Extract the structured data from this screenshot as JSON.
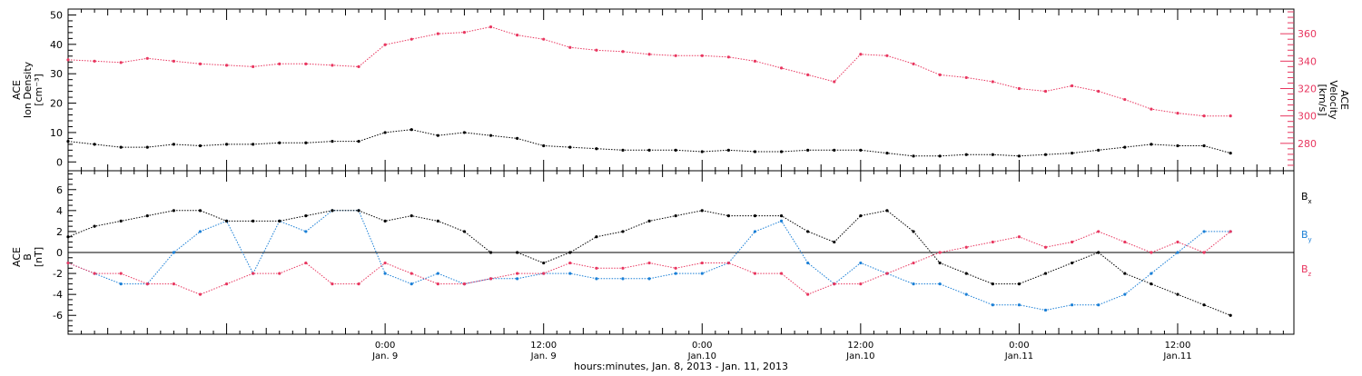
{
  "colors": {
    "frame": "#000000",
    "density": "#000000",
    "velocity": "#e8365f",
    "bx": "#000000",
    "by": "#1a7fd6",
    "bz": "#e8365f"
  },
  "x_axis": {
    "title": "hours:minutes, Jan.  8, 2013 - Jan. 11, 2013",
    "range_hours": [
      0,
      92.8
    ],
    "ticks": [
      {
        "hour": 24,
        "time": "0:00",
        "day": "Jan. 9"
      },
      {
        "hour": 36,
        "time": "12:00",
        "day": "Jan. 9"
      },
      {
        "hour": 48,
        "time": "0:00",
        "day": "Jan.10"
      },
      {
        "hour": 60,
        "time": "12:00",
        "day": "Jan.10"
      },
      {
        "hour": 72,
        "time": "0:00",
        "day": "Jan.11"
      },
      {
        "hour": 84,
        "time": "12:00",
        "day": "Jan.11"
      }
    ]
  },
  "chart_data": [
    {
      "type": "scatter",
      "panel": "top",
      "left_axis_label": [
        "ACE",
        "Ion Density",
        "[cm⁻³]"
      ],
      "right_axis_label": [
        "ACE",
        "Velocity",
        "[km/s]"
      ],
      "left_ylim": [
        -3,
        52
      ],
      "right_ylim": [
        260,
        378
      ],
      "left_ticks": [
        "0",
        "10",
        "20",
        "30",
        "40",
        "50"
      ],
      "right_ticks": [
        "280",
        "300",
        "320",
        "340",
        "360"
      ],
      "series": [
        {
          "axis": "left",
          "x": [
            0,
            2,
            4,
            6,
            8,
            10,
            12,
            14,
            16,
            18,
            20,
            22,
            24,
            26,
            28,
            30,
            32,
            34,
            36,
            38,
            40,
            42,
            44,
            46,
            48,
            50,
            52,
            54,
            56,
            58,
            60,
            62,
            64,
            66,
            68,
            70,
            72,
            74,
            76,
            78,
            80,
            82,
            84,
            86,
            88
          ],
          "y": [
            7,
            6,
            5,
            5,
            6,
            5.5,
            6,
            6,
            6.5,
            6.5,
            7,
            7,
            10,
            11,
            9,
            10,
            9,
            8,
            5.5,
            5,
            4.5,
            4,
            4,
            4,
            3.5,
            4,
            3.5,
            3.5,
            4,
            4,
            4,
            3,
            2,
            2,
            2.5,
            2.5,
            2,
            2.5,
            3,
            4,
            5,
            6,
            5.5,
            5.5,
            3
          ]
        },
        {
          "axis": "right",
          "x": [
            0,
            2,
            4,
            6,
            8,
            10,
            12,
            14,
            16,
            18,
            20,
            22,
            24,
            26,
            28,
            30,
            32,
            34,
            36,
            38,
            40,
            42,
            44,
            46,
            48,
            50,
            52,
            54,
            56,
            58,
            60,
            62,
            64,
            66,
            68,
            70,
            72,
            74,
            76,
            78,
            80,
            82,
            84,
            86,
            88
          ],
          "y": [
            341,
            340,
            339,
            342,
            340,
            338,
            337,
            336,
            338,
            338,
            337,
            336,
            352,
            356,
            360,
            361,
            365,
            359,
            356,
            350,
            348,
            347,
            345,
            344,
            344,
            343,
            340,
            335,
            330,
            325,
            345,
            344,
            338,
            330,
            328,
            325,
            320,
            318,
            322,
            318,
            312,
            305,
            302,
            300,
            300
          ]
        }
      ]
    },
    {
      "type": "scatter",
      "panel": "bottom",
      "left_axis_label": [
        "ACE",
        "B",
        "[nT]"
      ],
      "ylim": [
        -7.8,
        7.8
      ],
      "y_ticks": [
        "-6",
        "-4",
        "-2",
        "0",
        "2",
        "4",
        "6"
      ],
      "series": [
        {
          "name": "Bx",
          "legend": {
            "main": "B",
            "sub": "x"
          },
          "x": [
            0,
            2,
            4,
            6,
            8,
            10,
            12,
            14,
            16,
            18,
            20,
            22,
            24,
            26,
            28,
            30,
            32,
            34,
            36,
            38,
            40,
            42,
            44,
            46,
            48,
            50,
            52,
            54,
            56,
            58,
            60,
            62,
            64,
            66,
            68,
            70,
            72,
            74,
            76,
            78,
            80,
            82,
            84,
            86,
            88
          ],
          "y": [
            1.5,
            2.5,
            3,
            3.5,
            4,
            4,
            3,
            3,
            3,
            3.5,
            4,
            4,
            3,
            3.5,
            3,
            2,
            0,
            0,
            -1,
            0,
            1.5,
            2,
            3,
            3.5,
            4,
            3.5,
            3.5,
            3.5,
            2,
            1,
            3.5,
            4,
            2,
            -1,
            -2,
            -3,
            -3,
            -2,
            -1,
            0,
            -2,
            -3,
            -4,
            -5,
            -6
          ]
        },
        {
          "name": "By",
          "legend": {
            "main": "B",
            "sub": "y"
          },
          "x": [
            0,
            2,
            4,
            6,
            8,
            10,
            12,
            14,
            16,
            18,
            20,
            22,
            24,
            26,
            28,
            30,
            32,
            34,
            36,
            38,
            40,
            42,
            44,
            46,
            48,
            50,
            52,
            54,
            56,
            58,
            60,
            62,
            64,
            66,
            68,
            70,
            72,
            74,
            76,
            78,
            80,
            82,
            84,
            86,
            88
          ],
          "y": [
            -1,
            -2,
            -3,
            -3,
            0,
            2,
            3,
            -2,
            3,
            2,
            4,
            4,
            -2,
            -3,
            -2,
            -3,
            -2.5,
            -2.5,
            -2,
            -2,
            -2.5,
            -2.5,
            -2.5,
            -2,
            -2,
            -1,
            2,
            3,
            -1,
            -3,
            -1,
            -2,
            -3,
            -3,
            -4,
            -5,
            -5,
            -5.5,
            -5,
            -5,
            -4,
            -2,
            0,
            2,
            2
          ]
        },
        {
          "name": "Bz",
          "legend": {
            "main": "B",
            "sub": "z"
          },
          "x": [
            0,
            2,
            4,
            6,
            8,
            10,
            12,
            14,
            16,
            18,
            20,
            22,
            24,
            26,
            28,
            30,
            32,
            34,
            36,
            38,
            40,
            42,
            44,
            46,
            48,
            50,
            52,
            54,
            56,
            58,
            60,
            62,
            64,
            66,
            68,
            70,
            72,
            74,
            76,
            78,
            80,
            82,
            84,
            86,
            88
          ],
          "y": [
            -1,
            -2,
            -2,
            -3,
            -3,
            -4,
            -3,
            -2,
            -2,
            -1,
            -3,
            -3,
            -1,
            -2,
            -3,
            -3,
            -2.5,
            -2,
            -2,
            -1,
            -1.5,
            -1.5,
            -1,
            -1.5,
            -1,
            -1,
            -2,
            -2,
            -4,
            -3,
            -3,
            -2,
            -1,
            0,
            0.5,
            1,
            1.5,
            0.5,
            1,
            2,
            1,
            0,
            1,
            0,
            2
          ]
        }
      ]
    }
  ]
}
